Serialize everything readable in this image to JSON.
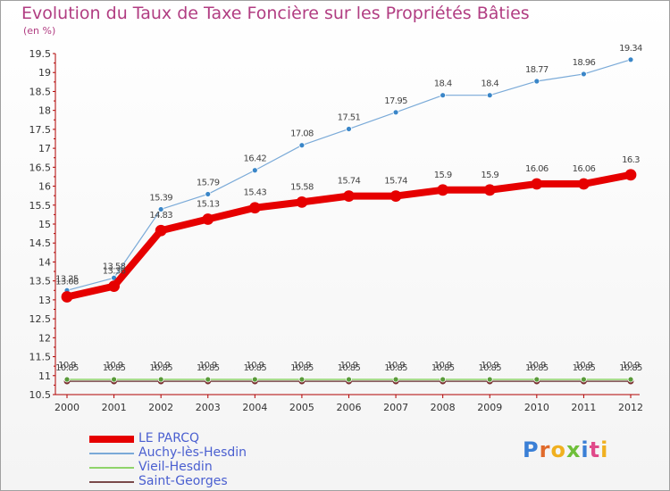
{
  "header": {
    "title": "Evolution du Taux de Taxe Foncière sur les Propriétés Bâties",
    "unit": "(en %)"
  },
  "logo": {
    "text": "Proxiti",
    "colors": [
      "#3a7fd6",
      "#e06a2b",
      "#f0b01f",
      "#6fbf3a",
      "#3a7fd6",
      "#e04a8a",
      "#f0b01f"
    ]
  },
  "chart_data": {
    "type": "line",
    "title": "Evolution du Taux de Taxe Foncière sur les Propriétés Bâties",
    "ylabel": "(en %)",
    "xlabel": "",
    "ylim": [
      10.5,
      19.5
    ],
    "yticks": [
      "10.5",
      "11",
      "11.5",
      "12",
      "12.5",
      "13",
      "13.5",
      "14",
      "14.5",
      "15",
      "15.5",
      "16",
      "16.5",
      "17",
      "17.5",
      "18",
      "18.5",
      "19",
      "19.5"
    ],
    "categories": [
      "2000",
      "2001",
      "2002",
      "2003",
      "2004",
      "2005",
      "2006",
      "2007",
      "2008",
      "2009",
      "2010",
      "2011",
      "2012"
    ],
    "series": [
      {
        "name": "LE PARCQ",
        "color": "#e60000",
        "values": [
          13.08,
          13.36,
          14.83,
          15.13,
          15.43,
          15.58,
          15.74,
          15.74,
          15.9,
          15.9,
          16.06,
          16.06,
          16.3
        ],
        "labels": [
          "13.08",
          "13.36",
          "14.83",
          "15.13",
          "15.43",
          "15.58",
          "15.74",
          "15.74",
          "15.9",
          "15.9",
          "16.06",
          "16.06",
          "16.3"
        ]
      },
      {
        "name": "Auchy-lès-Hesdin",
        "color": "#7aaad8",
        "values": [
          13.25,
          13.58,
          15.39,
          15.79,
          16.42,
          17.08,
          17.51,
          17.95,
          18.4,
          18.4,
          18.77,
          18.96,
          19.34
        ],
        "labels": [
          "13.25",
          "13.58",
          "15.39",
          "15.79",
          "16.42",
          "17.08",
          "17.51",
          "17.95",
          "18.4",
          "18.4",
          "18.77",
          "18.96",
          "19.34"
        ]
      },
      {
        "name": "Vieil-Hesdin",
        "color": "#8fd46a",
        "values": [
          10.9,
          10.9,
          10.9,
          10.9,
          10.9,
          10.9,
          10.9,
          10.9,
          10.9,
          10.9,
          10.9,
          10.9,
          10.9
        ],
        "labels": [
          "10.9",
          "10.9",
          "10.9",
          "10.9",
          "10.9",
          "10.9",
          "10.9",
          "10.9",
          "10.9",
          "10.9",
          "10.9",
          "10.9",
          "10.9"
        ]
      },
      {
        "name": "Saint-Georges",
        "color": "#7a4a4a",
        "values": [
          10.85,
          10.85,
          10.85,
          10.85,
          10.85,
          10.85,
          10.85,
          10.85,
          10.85,
          10.85,
          10.85,
          10.85,
          10.85
        ],
        "labels": [
          "10.85",
          "10.85",
          "10.85",
          "10.85",
          "10.85",
          "10.85",
          "10.85",
          "10.85",
          "10.85",
          "10.85",
          "10.85",
          "10.85",
          "10.85"
        ]
      }
    ],
    "legend": "bottom-left"
  }
}
